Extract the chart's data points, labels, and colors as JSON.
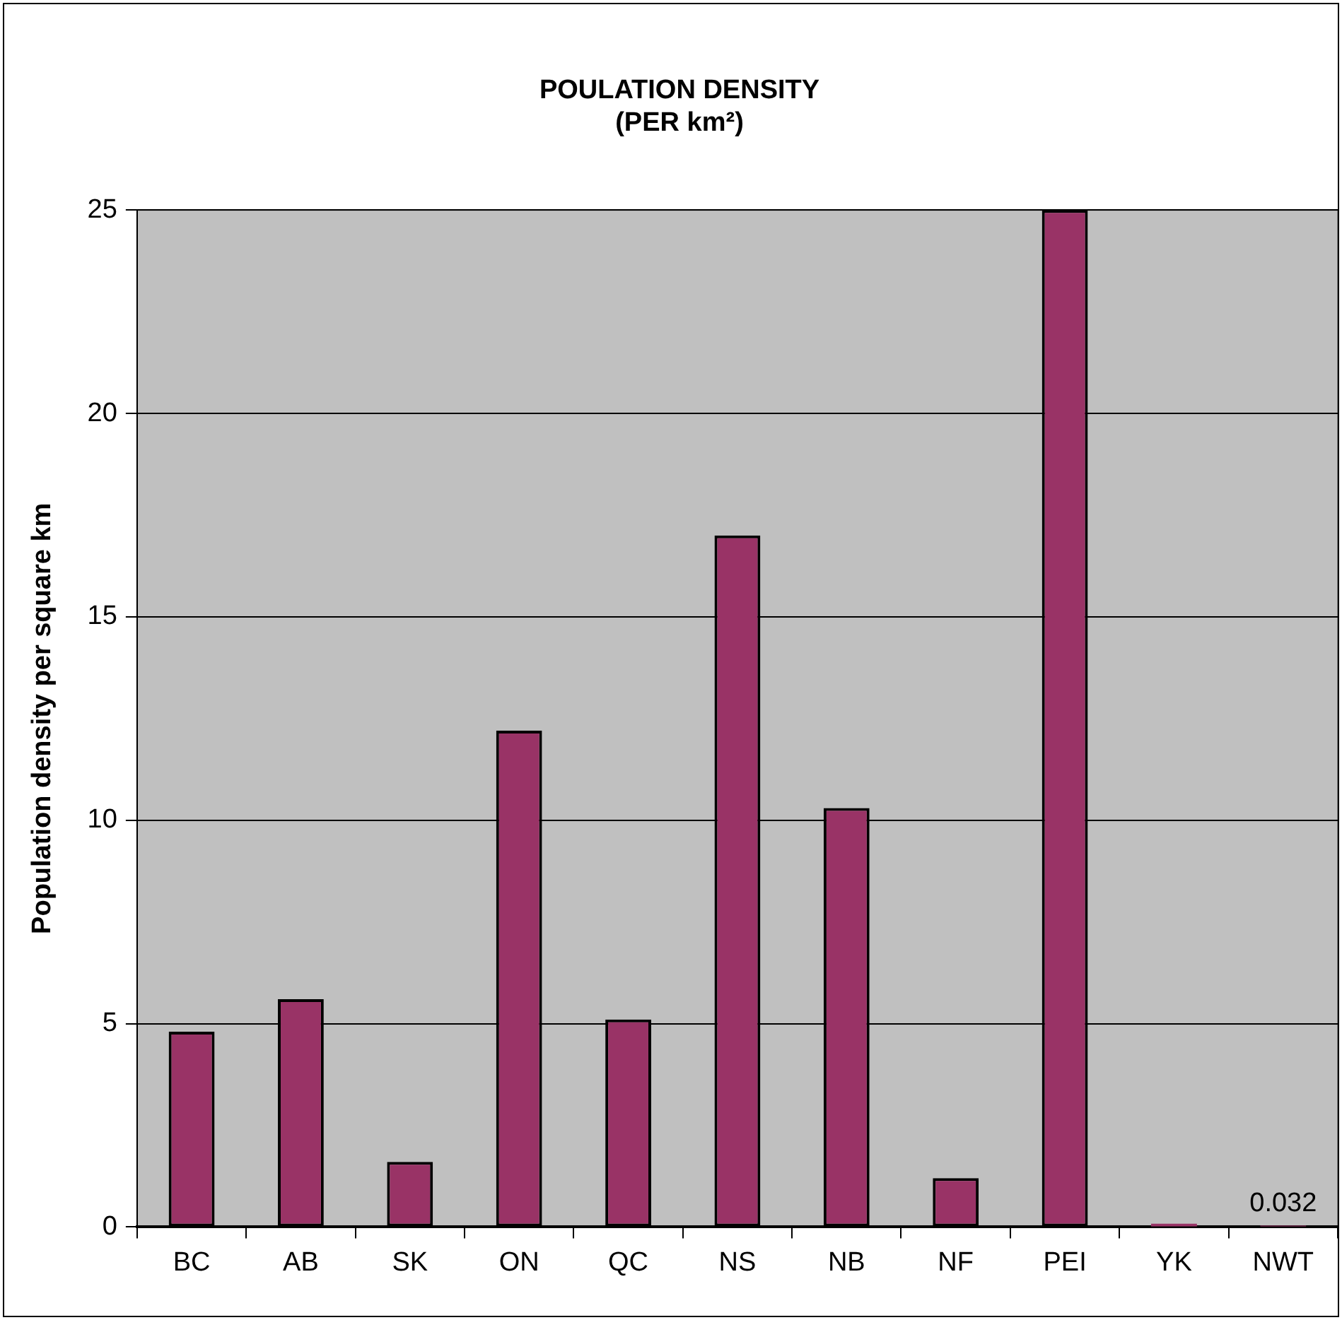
{
  "chart_data": {
    "type": "bar",
    "title": "POULATION DENSITY\n(PER km²)",
    "ylabel": "Population density per square km",
    "categories": [
      "BC",
      "AB",
      "SK",
      "ON",
      "QC",
      "NS",
      "NB",
      "NF",
      "PEI",
      "YK",
      "NWT"
    ],
    "values": [
      4.8,
      5.6,
      1.6,
      12.2,
      5.1,
      17.0,
      10.3,
      1.2,
      25,
      0.08,
      0.032
    ],
    "value_labels": [
      null,
      null,
      null,
      null,
      null,
      null,
      null,
      null,
      null,
      null,
      "0.032"
    ],
    "color": "#993366",
    "ylim": [
      0,
      25
    ],
    "yticks": [
      0,
      5,
      10,
      15,
      20,
      25
    ],
    "grid": "y",
    "legend": false
  }
}
